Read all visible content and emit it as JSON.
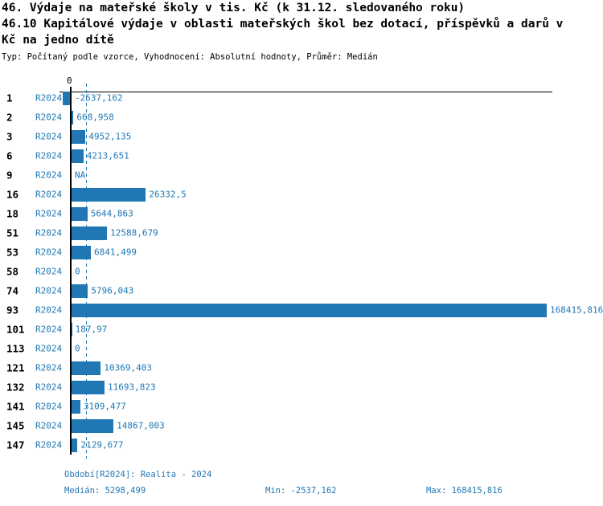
{
  "title": {
    "line1": "46. Výdaje na mateřské školy v tis. Kč (k 31.12. sledovaného roku)",
    "line2": "46.10 Kapitálové výdaje v oblasti mateřských škol bez dotací, příspěvků a darů v",
    "line3": "Kč na jedno dítě"
  },
  "subtitle": "Typ: Počítaný podle vzorce, Vyhodnocení: Absolutní hodnoty, Průměr: Medián",
  "colors": {
    "bar": "#2177b4",
    "blue_text": "#1f77b4",
    "axis": "#000000"
  },
  "chart_data": {
    "type": "bar",
    "orientation": "horizontal",
    "zero_tick_label": "0",
    "period_label": "R2024",
    "categories": [
      "1",
      "2",
      "3",
      "6",
      "9",
      "16",
      "18",
      "51",
      "53",
      "58",
      "74",
      "93",
      "101",
      "113",
      "121",
      "132",
      "141",
      "145",
      "147"
    ],
    "values": [
      -2537.162,
      668.958,
      4952.135,
      4213.651,
      null,
      26332.5,
      5644.863,
      12588.679,
      6841.499,
      0,
      5796.043,
      168415.816,
      187.97,
      0,
      10369.403,
      11693.823,
      3109.477,
      14867.003,
      2129.677
    ],
    "value_labels": [
      "-2537,162",
      "668,958",
      "4952,135",
      "4213,651",
      "NA",
      "26332,5",
      "5644,863",
      "12588,679",
      "6841,499",
      "0",
      "5796,043",
      "168415,816",
      "187,97",
      "0",
      "10369,403",
      "11693,823",
      "3109,477",
      "14867,003",
      "2129,677"
    ],
    "median": 5298.499,
    "xlim": [
      -2537.162,
      168415.816
    ],
    "grid": "median-dashed-line-only",
    "legend": "none"
  },
  "footer": {
    "period": "Období[R2024]: Realita - 2024",
    "median": "Medián: 5298,499",
    "min": "Min: -2537,162",
    "max": "Max: 168415,816"
  }
}
